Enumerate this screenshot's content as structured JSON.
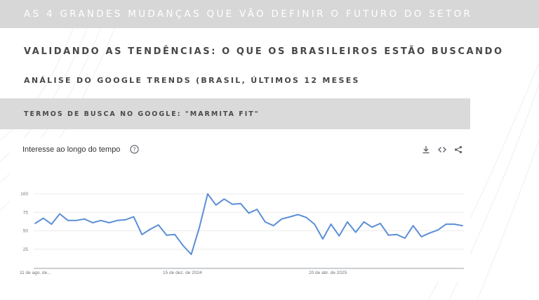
{
  "banner": {
    "title": "AS 4 GRANDES MUDANÇAS QUE VÃO DEFINIR O FUTURO DO SETOR"
  },
  "heading": "VALIDANDO AS TENDÊNCIAS: O QUE OS BRASILEIROS ESTÃO BUSCANDO",
  "subheading": "ANÁLISE DO GOOGLE TRENDS (BRASIL, ÚLTIMOS 12 MESES",
  "terms_band": {
    "title": "TERMOS DE BUSCA NO GOOGLE: \"MARMITA FIT\""
  },
  "card": {
    "title": "Interesse ao longo do tempo",
    "icons": [
      "help-icon",
      "download-icon",
      "embed-code-icon",
      "share-icon"
    ]
  },
  "colors": {
    "line": "#5b8fd6",
    "banner": "#d7d7d7",
    "band": "#dadada",
    "text": "#474747"
  },
  "chart_data": {
    "type": "line",
    "title": "Interesse ao longo do tempo",
    "xlabel": "",
    "ylabel": "",
    "ylim": [
      0,
      100
    ],
    "y_ticks": [
      "100",
      "75",
      "50",
      "25"
    ],
    "x_tick_labels": [
      "11 de ago. de...",
      "15 de dez. de 2024",
      "20 de abr. de 2025"
    ],
    "grid": true,
    "series": [
      {
        "values": [
          60,
          67,
          59,
          73,
          64,
          64,
          66,
          61,
          64,
          61,
          64,
          65,
          69,
          45,
          52,
          58,
          44,
          45,
          30,
          18,
          55,
          100,
          85,
          93,
          86,
          87,
          74,
          79,
          62,
          57,
          66,
          69,
          72,
          68,
          59,
          39,
          59,
          43,
          62,
          48,
          62,
          55,
          60,
          44,
          45,
          40,
          57,
          42,
          47,
          51,
          59,
          59,
          57
        ]
      }
    ]
  }
}
